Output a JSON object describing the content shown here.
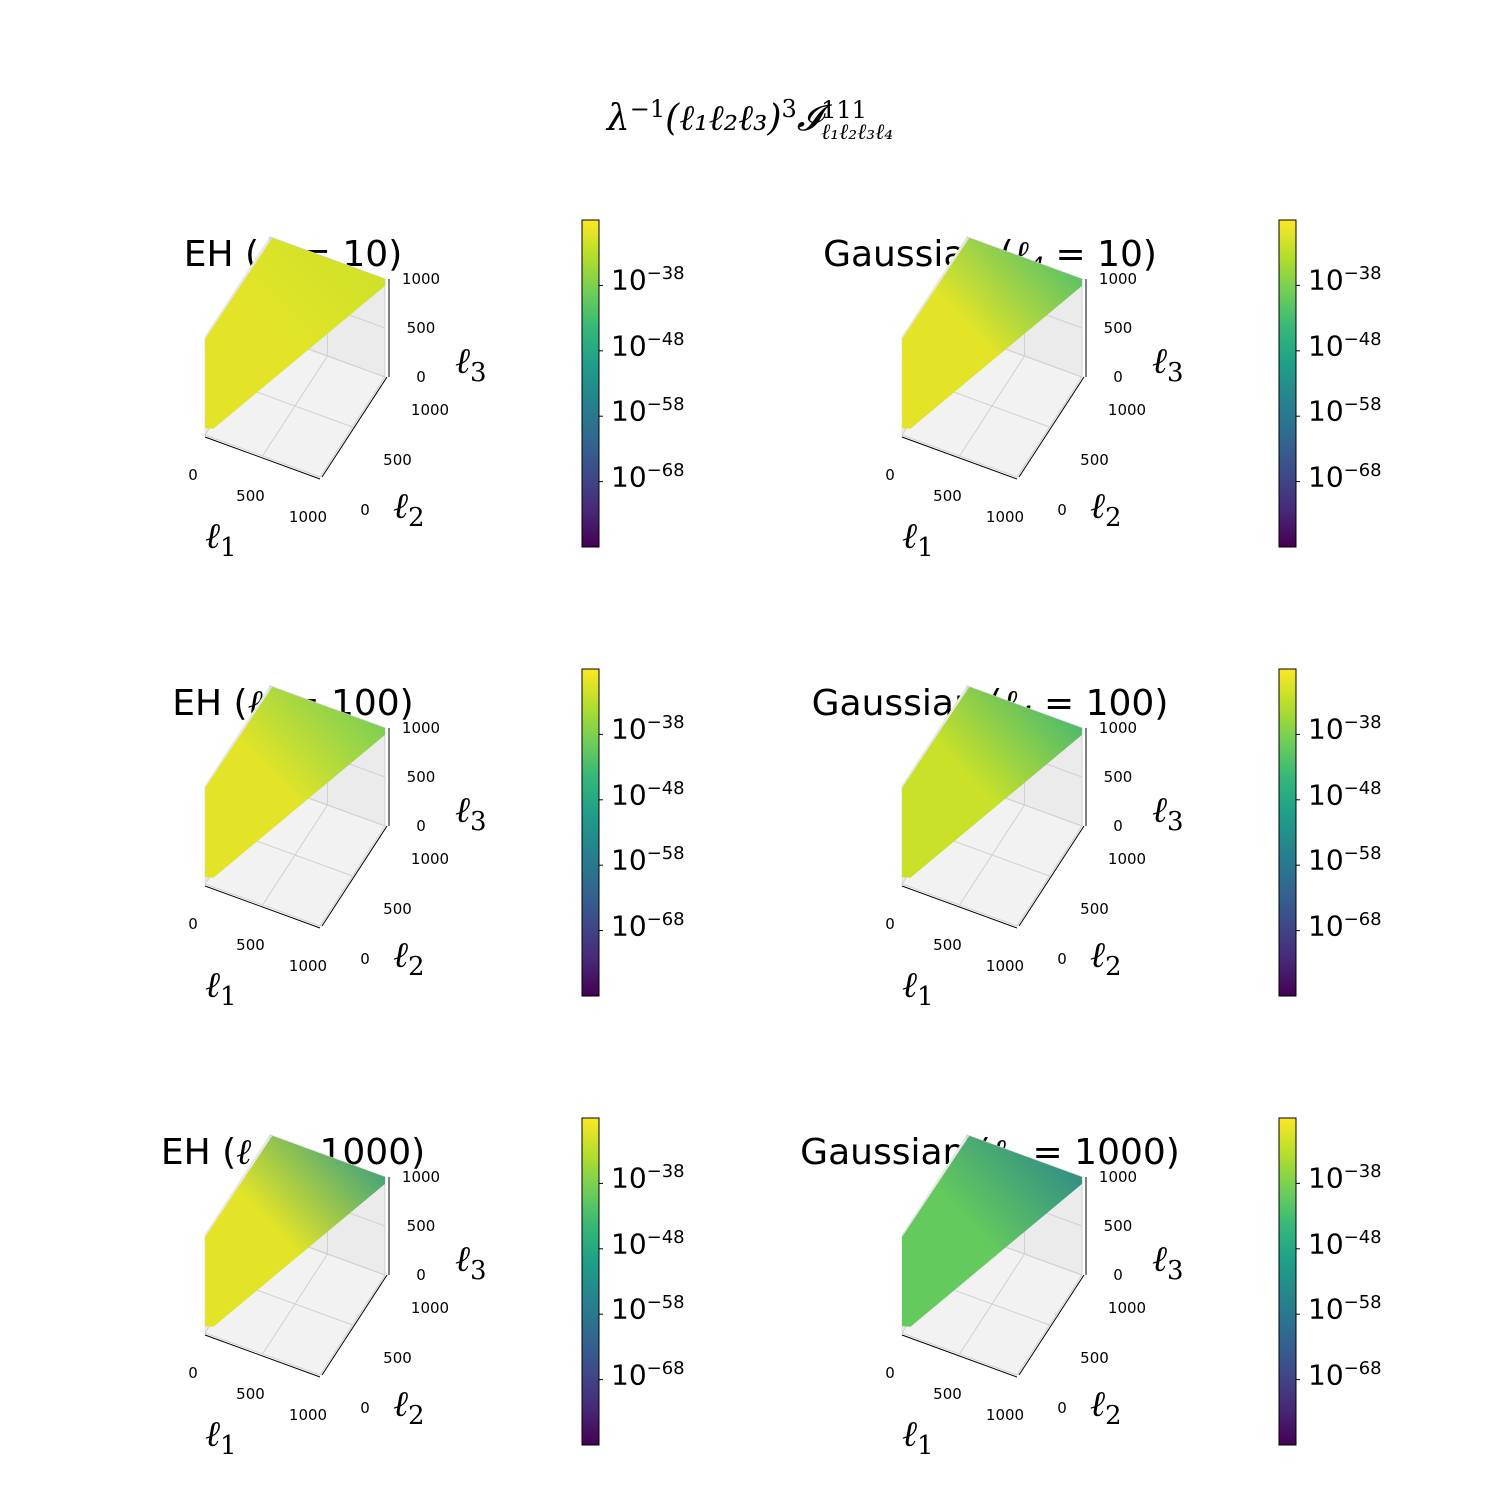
{
  "figure": {
    "suptitle_prefix": "λ",
    "suptitle_exp": "−1",
    "suptitle_body": "(ℓ₁ℓ₂ℓ₃)",
    "suptitle_pow": "3",
    "suptitle_sym": "𝓘",
    "suptitle_super": "111",
    "suptitle_sub": "ℓ₁ℓ₂ℓ₃ℓ₄"
  },
  "colorbar": {
    "colormap": "viridis",
    "colors": [
      "#440154",
      "#482878",
      "#3e4a89",
      "#31688e",
      "#26828e",
      "#1f9e89",
      "#35b779",
      "#6ece58",
      "#b5de2b",
      "#fde725"
    ],
    "tick_base": "10",
    "tick_exponents": [
      "−38",
      "−48",
      "−58",
      "−68"
    ],
    "log_range": [
      -78,
      -28
    ]
  },
  "axis_labels": {
    "x": "ℓ",
    "x_sub": "1",
    "y": "ℓ",
    "y_sub": "2",
    "z": "ℓ",
    "z_sub": "3"
  },
  "axis_ticks": {
    "x": [
      "0",
      "500",
      "1000"
    ],
    "y": [
      "0",
      "500",
      "1000"
    ],
    "z": [
      "0",
      "500",
      "1000"
    ]
  },
  "chart_data": [
    {
      "type": "scatter",
      "projection": "3d",
      "model": "EH",
      "title_prefix": "EH (",
      "title_var": "ℓ",
      "title_sub": "4",
      "title_eq": " = 10)",
      "ell4": 10,
      "xlim": [
        0,
        1000
      ],
      "ylim": [
        0,
        1000
      ],
      "zlim": [
        0,
        1000
      ],
      "zscale": "none",
      "color_scale": "log",
      "log10_value_near_l1_axis": -30,
      "log10_value_far_corner": -32
    },
    {
      "type": "scatter",
      "projection": "3d",
      "model": "Gaussian",
      "title_prefix": "Gaussian (",
      "title_var": "ℓ",
      "title_sub": "4",
      "title_eq": " = 10)",
      "ell4": 10,
      "xlim": [
        0,
        1000
      ],
      "ylim": [
        0,
        1000
      ],
      "zlim": [
        0,
        1000
      ],
      "color_scale": "log",
      "log10_value_near_l1_axis": -30,
      "log10_value_far_corner": -44
    },
    {
      "type": "scatter",
      "projection": "3d",
      "model": "EH",
      "title_prefix": "EH (",
      "title_var": "ℓ",
      "title_sub": "4",
      "title_eq": " = 100)",
      "ell4": 100,
      "xlim": [
        0,
        1000
      ],
      "ylim": [
        0,
        1000
      ],
      "zlim": [
        0,
        1000
      ],
      "color_scale": "log",
      "log10_value_near_l1_axis": -30,
      "log10_value_far_corner": -40
    },
    {
      "type": "scatter",
      "projection": "3d",
      "model": "Gaussian",
      "title_prefix": "Gaussian (",
      "title_var": "ℓ",
      "title_sub": "4",
      "title_eq": " = 100)",
      "ell4": 100,
      "xlim": [
        0,
        1000
      ],
      "ylim": [
        0,
        1000
      ],
      "zlim": [
        0,
        1000
      ],
      "color_scale": "log",
      "log10_value_near_l1_axis": -32,
      "log10_value_far_corner": -46
    },
    {
      "type": "scatter",
      "projection": "3d",
      "model": "EH",
      "title_prefix": "EH (",
      "title_var": "ℓ",
      "title_sub": "4",
      "title_eq": " = 1000)",
      "ell4": 1000,
      "xlim": [
        0,
        1000
      ],
      "ylim": [
        0,
        1000
      ],
      "zlim": [
        0,
        1000
      ],
      "color_scale": "log",
      "log10_value_near_l1_axis": -30,
      "log10_value_far_corner": -52
    },
    {
      "type": "scatter",
      "projection": "3d",
      "model": "Gaussian",
      "title_prefix": "Gaussian (",
      "title_var": "ℓ",
      "title_sub": "4",
      "title_eq": " = 1000)",
      "ell4": 1000,
      "xlim": [
        0,
        1000
      ],
      "ylim": [
        0,
        1000
      ],
      "zlim": [
        0,
        1000
      ],
      "color_scale": "log",
      "log10_value_near_l1_axis": -40,
      "log10_value_far_corner": -56
    }
  ]
}
